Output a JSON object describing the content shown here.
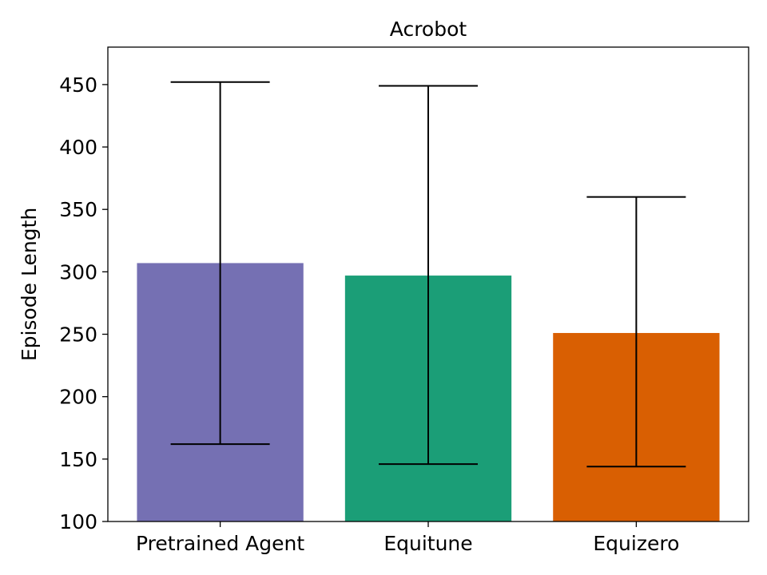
{
  "chart_data": {
    "type": "bar",
    "title": "Acrobot",
    "xlabel": "",
    "ylabel": "Episode Length",
    "ylim": [
      100,
      480
    ],
    "yticks": [
      100,
      150,
      200,
      250,
      300,
      350,
      400,
      450
    ],
    "categories": [
      "Pretrained Agent",
      "Equitune",
      "Equizero"
    ],
    "values": [
      307,
      297,
      251
    ],
    "error_low": [
      162,
      146,
      144
    ],
    "error_high": [
      452,
      449,
      360
    ],
    "colors": [
      "#7570b3",
      "#1b9e77",
      "#d95f02"
    ],
    "grid": false
  }
}
